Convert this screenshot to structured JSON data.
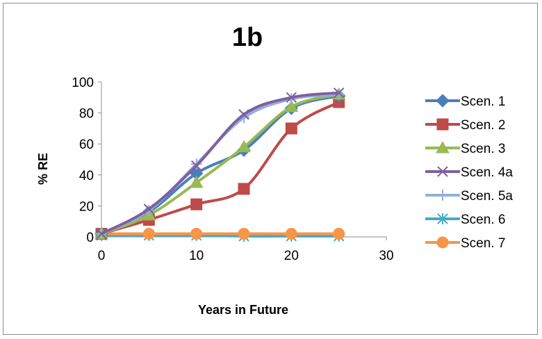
{
  "chart_data": {
    "type": "line",
    "title": "1b",
    "xlabel": "Years in Future",
    "ylabel": "% RE",
    "xlim": [
      0,
      30
    ],
    "ylim": [
      0,
      100
    ],
    "xticks": [
      "0",
      "10",
      "20",
      "30"
    ],
    "yticks": [
      "0",
      "20",
      "40",
      "60",
      "80",
      "100"
    ],
    "x": [
      0,
      5,
      10,
      15,
      20,
      25
    ],
    "grid": false,
    "legend_position": "right",
    "series": [
      {
        "name": "Scen. 1",
        "color": "#4a7ebb",
        "marker": "diamond",
        "values": [
          2,
          16,
          41,
          56,
          83,
          91
        ]
      },
      {
        "name": "Scen. 2",
        "color": "#be4b48",
        "marker": "square",
        "values": [
          2,
          11,
          21,
          31,
          70,
          87
        ]
      },
      {
        "name": "Scen. 3",
        "color": "#98b954",
        "marker": "triangle",
        "values": [
          2,
          14,
          35,
          58,
          84,
          92
        ]
      },
      {
        "name": "Scen. 4a",
        "color": "#7d60a0",
        "marker": "x",
        "values": [
          2,
          18,
          46,
          79,
          90,
          93
        ]
      },
      {
        "name": "Scen. 5a",
        "color": "#94b0d8",
        "marker": "plus",
        "values": [
          2,
          17,
          47,
          77,
          89,
          92
        ]
      },
      {
        "name": "Scen. 6",
        "color": "#46aac5",
        "marker": "star",
        "values": [
          1,
          1,
          1,
          0.5,
          0.5,
          0.5
        ]
      },
      {
        "name": "Scen. 7",
        "color": "#f79646",
        "marker": "circle",
        "values": [
          2,
          2,
          2,
          2,
          2,
          2
        ]
      }
    ]
  }
}
